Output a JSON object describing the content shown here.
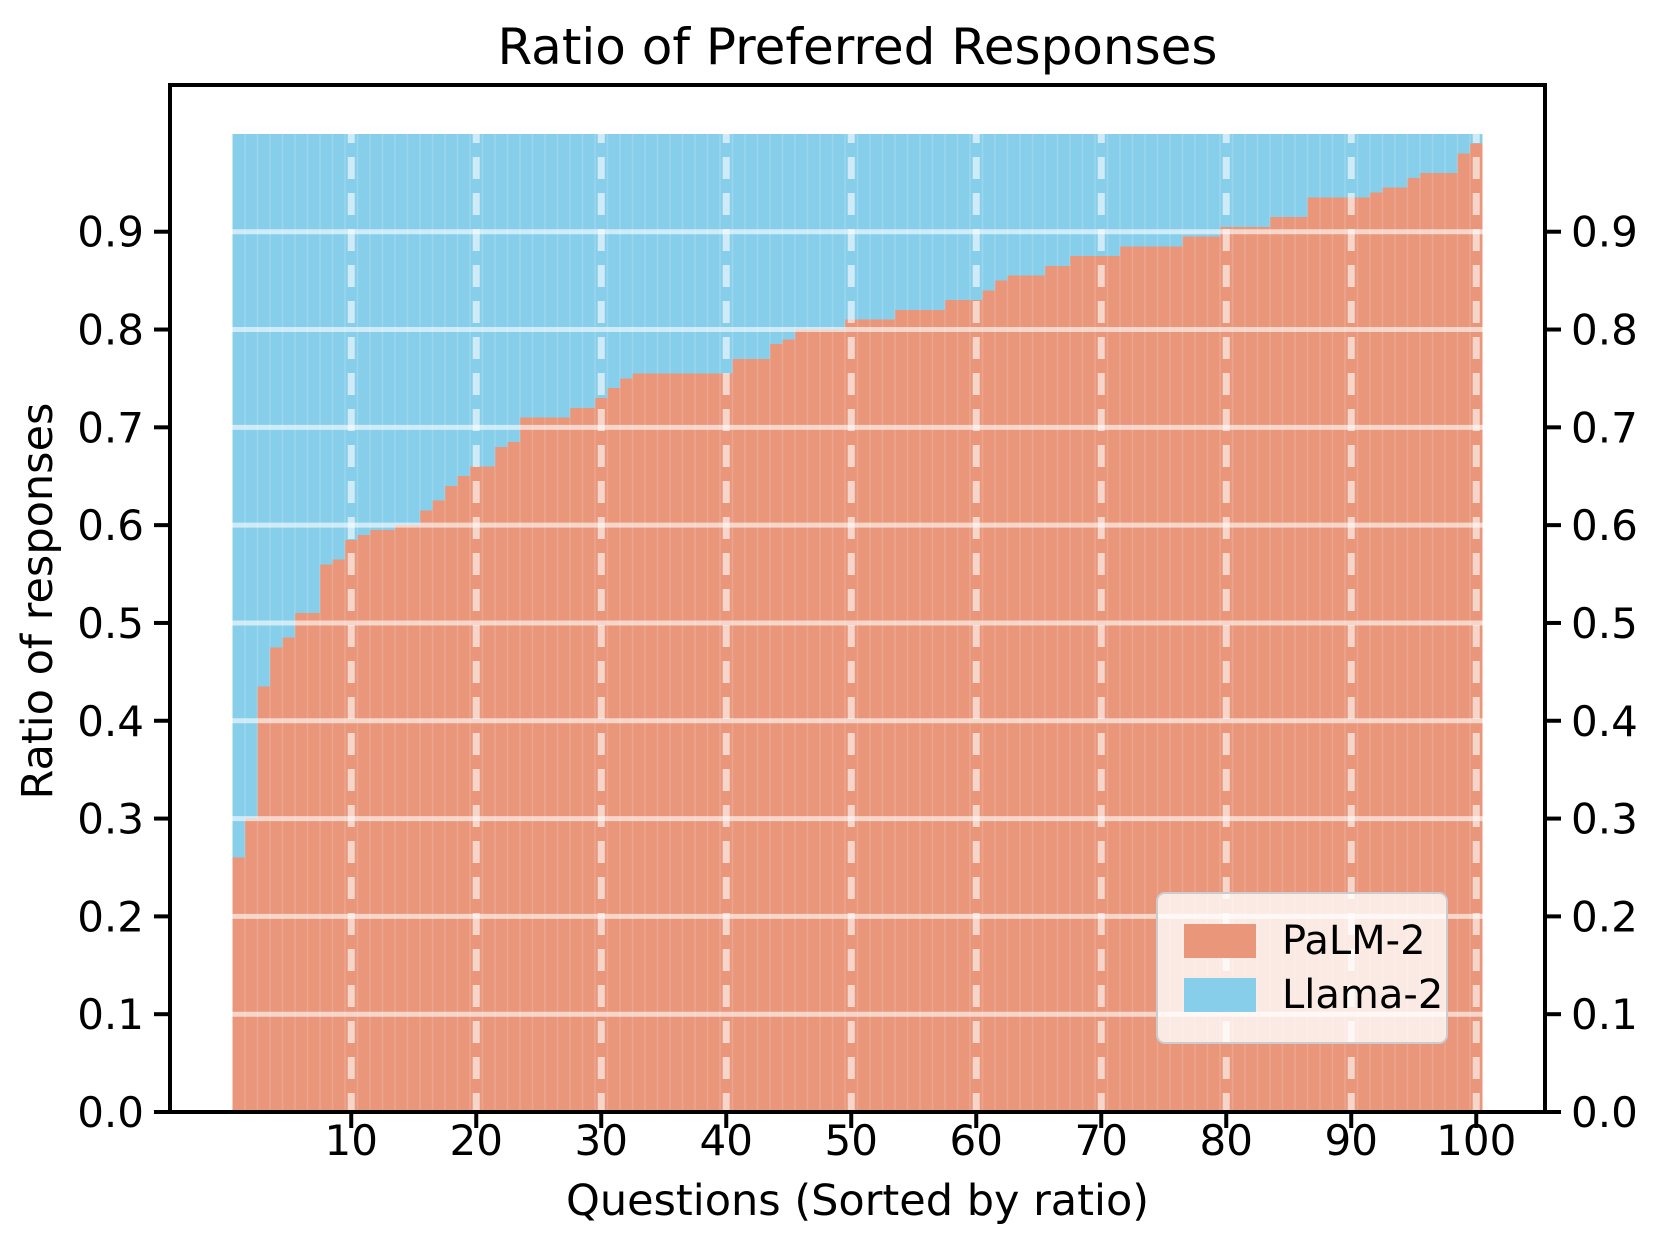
{
  "chart_data": {
    "type": "bar",
    "stacked": true,
    "title": "Ratio of Preferred Responses",
    "xlabel": "Questions (Sorted by ratio)",
    "ylabel": "Ratio of responses",
    "x_start": 1,
    "x_end": 100,
    "xlim": [
      -4.5,
      105.5
    ],
    "ylim": [
      0,
      1.05
    ],
    "xticks": [
      10,
      20,
      30,
      40,
      50,
      60,
      70,
      80,
      90,
      100
    ],
    "yticks": [
      0.0,
      0.1,
      0.2,
      0.3,
      0.4,
      0.5,
      0.6,
      0.7,
      0.8,
      0.9
    ],
    "ytick_labels": [
      "0.0",
      "0.1",
      "0.2",
      "0.3",
      "0.4",
      "0.5",
      "0.6",
      "0.7",
      "0.8",
      "0.9"
    ],
    "grid": {
      "horizontal": "solid white",
      "vertical": "dashed white",
      "color": "#ffffff"
    },
    "legend_position": "lower right",
    "series": [
      {
        "name": "PaLM-2",
        "color": "#E9967A",
        "values": [
          0.26,
          0.3,
          0.435,
          0.475,
          0.485,
          0.51,
          0.51,
          0.56,
          0.565,
          0.585,
          0.59,
          0.595,
          0.595,
          0.6,
          0.6,
          0.615,
          0.625,
          0.64,
          0.65,
          0.66,
          0.66,
          0.68,
          0.685,
          0.71,
          0.71,
          0.71,
          0.71,
          0.72,
          0.72,
          0.73,
          0.74,
          0.75,
          0.755,
          0.755,
          0.755,
          0.755,
          0.755,
          0.755,
          0.755,
          0.755,
          0.77,
          0.77,
          0.77,
          0.785,
          0.79,
          0.8,
          0.8,
          0.8,
          0.8,
          0.81,
          0.81,
          0.81,
          0.81,
          0.82,
          0.82,
          0.82,
          0.82,
          0.83,
          0.83,
          0.83,
          0.84,
          0.85,
          0.855,
          0.855,
          0.855,
          0.865,
          0.865,
          0.875,
          0.875,
          0.875,
          0.875,
          0.885,
          0.885,
          0.885,
          0.885,
          0.885,
          0.895,
          0.895,
          0.895,
          0.905,
          0.905,
          0.905,
          0.905,
          0.915,
          0.915,
          0.915,
          0.935,
          0.935,
          0.935,
          0.935,
          0.935,
          0.94,
          0.945,
          0.945,
          0.955,
          0.96,
          0.96,
          0.96,
          0.98,
          0.99
        ]
      },
      {
        "name": "Llama-2",
        "color": "#87CEEB",
        "values": [
          0.74,
          0.7,
          0.565,
          0.525,
          0.515,
          0.49,
          0.49,
          0.44,
          0.435,
          0.415,
          0.41,
          0.405,
          0.405,
          0.4,
          0.4,
          0.385,
          0.375,
          0.36,
          0.35,
          0.34,
          0.34,
          0.32,
          0.315,
          0.29,
          0.29,
          0.29,
          0.29,
          0.28,
          0.28,
          0.27,
          0.26,
          0.25,
          0.245,
          0.245,
          0.245,
          0.245,
          0.245,
          0.245,
          0.245,
          0.245,
          0.23,
          0.23,
          0.23,
          0.215,
          0.21,
          0.2,
          0.2,
          0.2,
          0.2,
          0.19,
          0.19,
          0.19,
          0.19,
          0.18,
          0.18,
          0.18,
          0.18,
          0.17,
          0.17,
          0.17,
          0.16,
          0.15,
          0.145,
          0.145,
          0.145,
          0.135,
          0.135,
          0.125,
          0.125,
          0.125,
          0.125,
          0.115,
          0.115,
          0.115,
          0.115,
          0.115,
          0.105,
          0.105,
          0.105,
          0.095,
          0.095,
          0.095,
          0.095,
          0.085,
          0.085,
          0.085,
          0.065,
          0.065,
          0.065,
          0.065,
          0.065,
          0.06,
          0.055,
          0.055,
          0.045,
          0.04,
          0.04,
          0.04,
          0.02,
          0.01
        ]
      }
    ]
  },
  "legend": {
    "items": [
      {
        "label": "PaLM-2",
        "color": "#E9967A"
      },
      {
        "label": "Llama-2",
        "color": "#87CEEB"
      }
    ]
  },
  "style": {
    "spine_color": "#000000",
    "background": "#ffffff",
    "grid_color": "#ffffff"
  }
}
